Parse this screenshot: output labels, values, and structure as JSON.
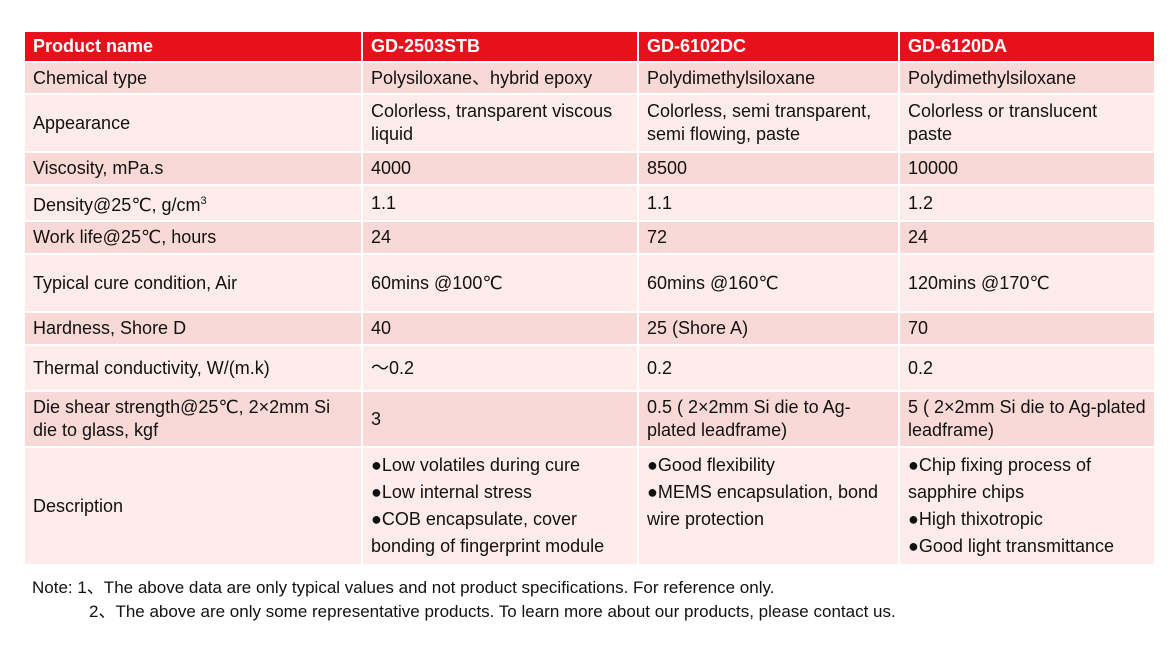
{
  "header": {
    "label": "Product name",
    "products": [
      "GD-2503STB",
      "GD-6102DC",
      "GD-6120DA"
    ]
  },
  "rows": [
    {
      "label": "Chemical type",
      "values": [
        "Polysiloxane、hybrid epoxy",
        "Polydimethylsiloxane",
        "Polydimethylsiloxane"
      ]
    },
    {
      "label": "Appearance",
      "values": [
        "Colorless, transparent viscous liquid",
        "Colorless, semi transparent, semi flowing, paste",
        "Colorless or translucent paste"
      ]
    },
    {
      "label": "Viscosity, mPa.s",
      "values": [
        "4000",
        "8500",
        "10000"
      ]
    },
    {
      "label": "Density@25℃, g/cm",
      "label_sup": "3",
      "values": [
        "1.1",
        "1.1",
        "1.2"
      ]
    },
    {
      "label": "Work life@25℃, hours",
      "values": [
        "24",
        "72",
        "24"
      ]
    },
    {
      "label": "Typical cure condition, Air",
      "values": [
        "60mins @100℃",
        "60mins @160℃",
        "120mins @170℃"
      ]
    },
    {
      "label": "Hardness, Shore D",
      "values": [
        "40",
        "25 (Shore A)",
        "70"
      ]
    },
    {
      "label": "Thermal conductivity, W/(m.k)",
      "values": [
        "～0.2",
        "0.2",
        "0.2"
      ]
    },
    {
      "label": "Die shear strength@25℃, 2×2mm Si die to glass, kgf",
      "values": [
        "3",
        "0.5 ( 2×2mm Si die to Ag-plated leadframe)",
        "5 ( 2×2mm Si die to Ag-plated leadframe)"
      ]
    }
  ],
  "description": {
    "label": "Description",
    "items": [
      [
        "●Low volatiles during cure",
        "●Low internal stress",
        "●COB encapsulate, cover bonding of fingerprint module"
      ],
      [
        "●Good flexibility",
        "●MEMS encapsulation, bond wire protection"
      ],
      [
        "●Chip fixing process of sapphire chips",
        "●High thixotropic",
        "●Good light transmittance"
      ]
    ]
  },
  "notes": {
    "line1": "Note: 1、The above data are only typical values and not product specifications. For reference only.",
    "line2": "2、The above are only some representative products. To learn more about our products, please contact us."
  }
}
